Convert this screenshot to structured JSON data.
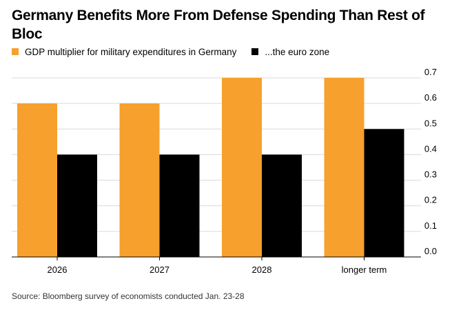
{
  "title": "Germany Benefits More From Defense Spending Than Rest of Bloc",
  "source": "Source: Bloomberg survey of economists conducted Jan. 23-28",
  "colors": {
    "germany": "#f7a02d",
    "euro_zone": "#000000",
    "grid": "#d9d9d9"
  },
  "chart_data": {
    "type": "bar",
    "title": "Germany Benefits More From Defense Spending Than Rest of Bloc",
    "xlabel": "",
    "ylabel": "",
    "categories": [
      "2026",
      "2027",
      "2028",
      "longer term"
    ],
    "series": [
      {
        "name": "GDP multiplier for military expenditures in Germany",
        "color": "#f7a02d",
        "values": [
          0.6,
          0.6,
          0.7,
          0.7
        ]
      },
      {
        "name": "...the euro zone",
        "color": "#000000",
        "values": [
          0.4,
          0.4,
          0.4,
          0.5
        ]
      }
    ],
    "ylim": [
      0,
      0.7
    ],
    "yticks": [
      "0.0",
      "0.1",
      "0.2",
      "0.3",
      "0.4",
      "0.5",
      "0.6",
      "0.7"
    ],
    "grid": true,
    "legend_position": "top-left"
  }
}
